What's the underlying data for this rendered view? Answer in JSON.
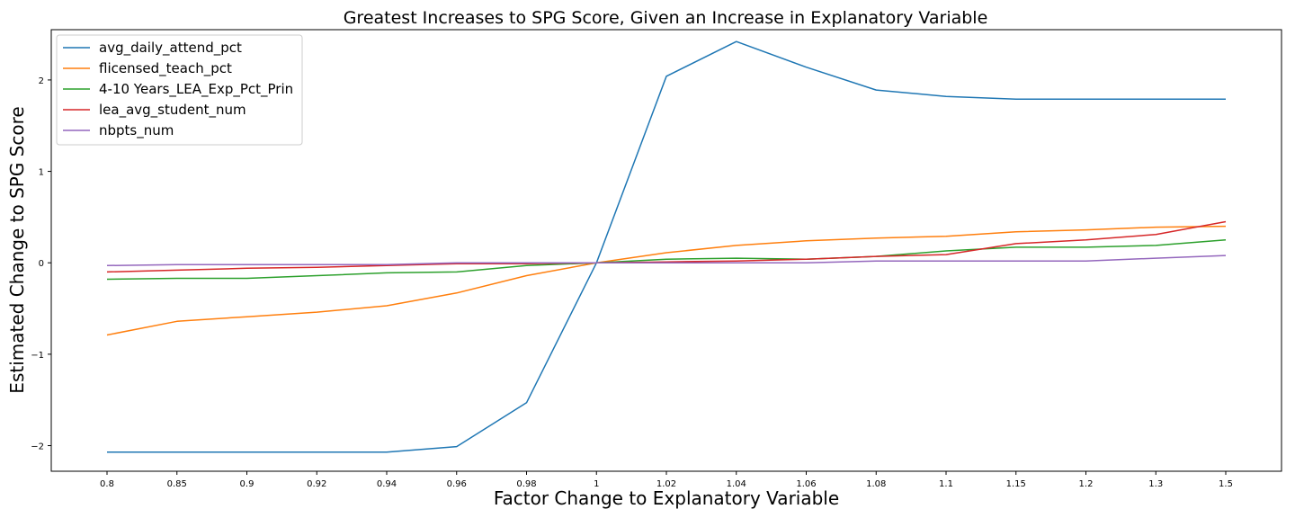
{
  "chart_data": {
    "type": "line",
    "title": "Greatest Increases to SPG Score, Given an Increase in Explanatory Variable",
    "xlabel": "Factor Change to Explanatory Variable",
    "ylabel": "Estimated Change to SPG Score",
    "categories": [
      "0.8",
      "0.85",
      "0.9",
      "0.92",
      "0.94",
      "0.96",
      "0.98",
      "1",
      "1.02",
      "1.04",
      "1.06",
      "1.08",
      "1.1",
      "1.15",
      "1.2",
      "1.3",
      "1.5"
    ],
    "ylim": [
      -2.28,
      2.55
    ],
    "yticks": [
      -2,
      -1,
      0,
      1,
      2
    ],
    "ytick_labels": [
      "−2",
      "−1",
      "0",
      "1",
      "2"
    ],
    "grid": false,
    "legend_position": "top-left",
    "series": [
      {
        "name": "avg_daily_attend_pct",
        "color": "#1f77b4",
        "values": [
          -2.07,
          -2.07,
          -2.07,
          -2.07,
          -2.07,
          -2.01,
          -1.53,
          0.0,
          2.04,
          2.42,
          2.14,
          1.89,
          1.82,
          1.79,
          1.79,
          1.79,
          1.79
        ]
      },
      {
        "name": "flicensed_teach_pct",
        "color": "#ff7f0e",
        "values": [
          -0.79,
          -0.64,
          -0.59,
          -0.54,
          -0.47,
          -0.33,
          -0.14,
          0.0,
          0.11,
          0.19,
          0.24,
          0.27,
          0.29,
          0.34,
          0.36,
          0.39,
          0.4
        ]
      },
      {
        "name": "4-10 Years_LEA_Exp_Pct_Prin",
        "color": "#2ca02c",
        "values": [
          -0.18,
          -0.17,
          -0.17,
          -0.14,
          -0.11,
          -0.1,
          -0.03,
          0.0,
          0.04,
          0.05,
          0.04,
          0.07,
          0.13,
          0.17,
          0.17,
          0.19,
          0.25
        ]
      },
      {
        "name": "lea_avg_student_num",
        "color": "#d62728",
        "values": [
          -0.1,
          -0.08,
          -0.06,
          -0.05,
          -0.03,
          -0.01,
          -0.01,
          0.0,
          0.01,
          0.02,
          0.04,
          0.07,
          0.09,
          0.21,
          0.25,
          0.31,
          0.45
        ]
      },
      {
        "name": "nbpts_num",
        "color": "#9467bd",
        "values": [
          -0.03,
          -0.02,
          -0.02,
          -0.02,
          -0.02,
          0.0,
          0.0,
          0.0,
          0.0,
          0.0,
          0.0,
          0.02,
          0.02,
          0.02,
          0.02,
          0.05,
          0.08
        ]
      }
    ]
  }
}
